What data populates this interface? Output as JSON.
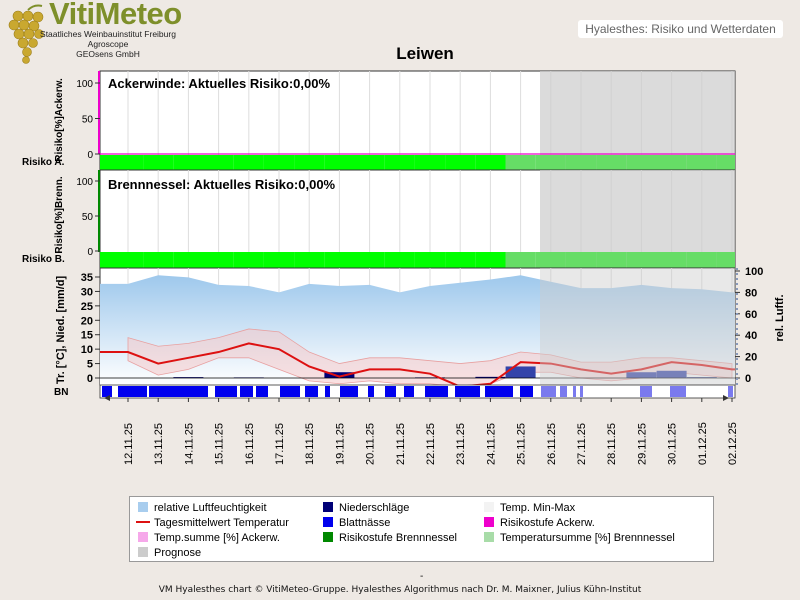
{
  "header": {
    "logo_text": "VitiMeteo",
    "org_lines": [
      "Staatliches Weinbauinstitut Freiburg",
      "Agroscope",
      "GEOsens GmbH"
    ],
    "product_tag": "Hyalesthes: Risiko und Wetterdaten",
    "station": "Leiwen"
  },
  "colors": {
    "risk_green": "#00ff00",
    "prognose_gray": "#cccccc",
    "humidity_blue": "#9ec8ec",
    "temp_red": "#dd1111",
    "precip_navy": "#000077",
    "leafwet_blue": "#0000ee",
    "acker_magenta": "#ee00cc",
    "brenn_green": "#008800"
  },
  "chart_data": [
    {
      "type": "area",
      "title": "Ackerwinde: Aktuelles Risiko:0,00%",
      "ylabel": "Risiko[%]Ackerw.",
      "row_label": "Risiko A.",
      "ylim": [
        -10,
        110
      ],
      "yticks": [
        "100",
        "50",
        "0"
      ],
      "risk_stage": [
        "0",
        "0",
        "0",
        "0",
        "0",
        "0",
        "0",
        "0",
        "0",
        "0",
        "0",
        "0",
        "0",
        "0",
        "0",
        "0",
        "0",
        "0",
        "0",
        "0",
        "0"
      ],
      "values": [
        0,
        0,
        0,
        0,
        0,
        0,
        0,
        0,
        0,
        0,
        0,
        0,
        0,
        0,
        0,
        0,
        0,
        0,
        0,
        0,
        0
      ]
    },
    {
      "type": "area",
      "title": "Brennnessel: Aktuelles Risiko:0,00%",
      "ylabel": "Risiko[%]Brenn.",
      "row_label": "Risiko B.",
      "ylim": [
        -10,
        110
      ],
      "yticks": [
        "100",
        "50",
        "0"
      ],
      "values": [
        0,
        0,
        0,
        0,
        0,
        0,
        0,
        0,
        0,
        0,
        0,
        0,
        0,
        0,
        0,
        0,
        0,
        0,
        0,
        0,
        0
      ]
    },
    {
      "type": "line",
      "ylabel": "Tr. [°C], Nied. [mm/d]",
      "ylabel2": "rel. Luftf.",
      "row_label": "BN",
      "ylim": [
        -2,
        37
      ],
      "y2lim": [
        -2,
        100
      ],
      "yticks": [
        "35",
        "30",
        "25",
        "20",
        "15",
        "10",
        "5",
        "0"
      ],
      "y2ticks": [
        "100",
        "80",
        "60",
        "40",
        "20",
        "0"
      ],
      "categories": [
        "12.11.25",
        "13.11.25",
        "14.11.25",
        "15.11.25",
        "16.11.25",
        "17.11.25",
        "18.11.25",
        "19.11.25",
        "20.11.25",
        "21.11.25",
        "22.11.25",
        "23.11.25",
        "24.11.25",
        "25.11.25",
        "26.11.25",
        "27.11.25",
        "28.11.25",
        "29.11.25",
        "30.11.25",
        "01.12.25",
        "02.12.25"
      ],
      "prognose_from": "25.11.25",
      "series": [
        {
          "name": "relative Luftfeuchtigkeit",
          "values": [
            88,
            96,
            94,
            87,
            86,
            80,
            88,
            86,
            87,
            80,
            86,
            89,
            92,
            96,
            90,
            84,
            84,
            87,
            84,
            83,
            80
          ]
        },
        {
          "name": "Tagesmittelwert Temperatur",
          "values": [
            9,
            5,
            7,
            9,
            12,
            10,
            4,
            0.5,
            3,
            3,
            1.5,
            -3,
            -2,
            5.5,
            5,
            3,
            1.5,
            3,
            5.5,
            4.5,
            3
          ]
        },
        {
          "name": "Temp. Min-Max",
          "max": [
            14,
            11,
            12,
            14,
            17,
            16,
            9,
            5,
            7,
            7,
            6,
            5,
            6,
            9,
            8,
            5.5,
            5.5,
            7,
            7,
            6,
            5
          ],
          "min": [
            6,
            1,
            3,
            7,
            7,
            3,
            -1,
            -2,
            -1,
            -2,
            -2,
            -3,
            -2,
            2,
            2,
            0,
            -1,
            0,
            2,
            1,
            0
          ]
        },
        {
          "name": "Niederschläge",
          "values": [
            0,
            0,
            0.3,
            0,
            0.2,
            0,
            0,
            2,
            0,
            0,
            0.2,
            0,
            0.4,
            4,
            0,
            0,
            0,
            2,
            2.5,
            0.3,
            0
          ]
        }
      ]
    }
  ],
  "legend": [
    {
      "label": "relative Luftfeuchtigkeit",
      "swatch": "humidity"
    },
    {
      "label": "Niederschläge",
      "swatch": "precip"
    },
    {
      "label": "Temp. Min-Max",
      "swatch": "minmax"
    },
    {
      "label": "Tagesmittelwert Temperatur",
      "swatch": "temp"
    },
    {
      "label": "Blattnässe",
      "swatch": "leafwet"
    },
    {
      "label": "Risikostufe Ackerw.",
      "swatch": "acker"
    },
    {
      "label": "Temp.summe [%] Ackerw.",
      "swatch": "ackersum"
    },
    {
      "label": "Risikostufe Brennnessel",
      "swatch": "brenn"
    },
    {
      "label": "Temperatursumme [%] Brennnessel",
      "swatch": "brennsum"
    },
    {
      "label": "Prognose",
      "swatch": "prognose"
    }
  ],
  "footer": {
    "dash": "-",
    "credit": "VM Hyalesthes chart © VitiMeteo-Gruppe. Hyalesthes Algorithmus nach Dr. M. Maixner, Julius Kühn-Institut"
  }
}
